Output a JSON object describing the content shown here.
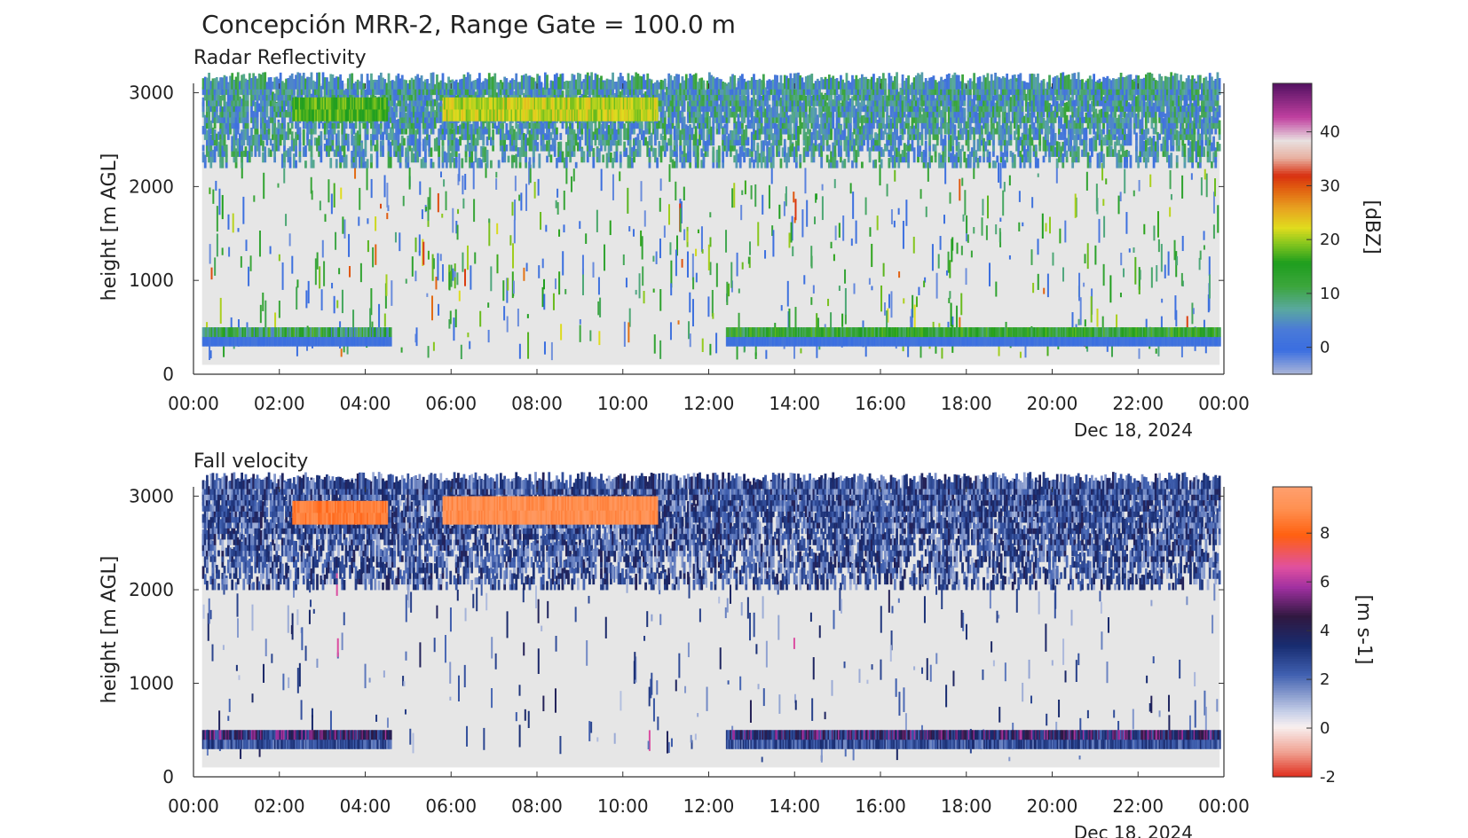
{
  "figure_title": "Concepción MRR-2, Range Gate = 100.0 m",
  "colors": {
    "background": "#e6e6e6",
    "axis": "#333333"
  },
  "panels": [
    {
      "title": "Radar Reflectivity",
      "ylabel": "height [m AGL]",
      "date_label": "Dec 18, 2024",
      "colorbar_label": "[dBZ]",
      "colorbar_ticks": [
        "0",
        "10",
        "20",
        "30",
        "40"
      ],
      "colorbar_range": [
        -5,
        49
      ]
    },
    {
      "title": "Fall velocity",
      "ylabel": "height [m AGL]",
      "date_label": "Dec 18, 2024",
      "colorbar_label": "[m s-1]",
      "colorbar_ticks": [
        "-2",
        "0",
        "2",
        "4",
        "6",
        "8"
      ],
      "colorbar_range": [
        -2,
        9.9
      ]
    }
  ],
  "x_tick_labels": [
    "00:00",
    "02:00",
    "04:00",
    "06:00",
    "08:00",
    "10:00",
    "12:00",
    "14:00",
    "16:00",
    "18:00",
    "20:00",
    "22:00",
    "00:00"
  ],
  "y_tick_labels": [
    "0",
    "1000",
    "2000",
    "3000"
  ],
  "chart_data": [
    {
      "type": "heatmap",
      "title": "Radar Reflectivity",
      "xlabel": "",
      "ylabel": "height [m AGL]",
      "x_unit": "hour of day (Dec 18, 2024)",
      "xlim": [
        0,
        24
      ],
      "ylim": [
        0,
        3100
      ],
      "value_unit": "dBZ",
      "value_range": [
        -5,
        49
      ],
      "colorbar_ticks": [
        0,
        10,
        20,
        30,
        40
      ],
      "features": [
        {
          "name": "upper layer",
          "height_range": [
            2200,
            3100
          ],
          "time_range": [
            0.2,
            23.9
          ],
          "typical_dBZ": [
            0,
            12
          ]
        },
        {
          "name": "enhanced layer",
          "height_range": [
            2700,
            2950
          ],
          "time_range": [
            2.3,
            4.5
          ],
          "typical_dBZ": [
            14,
            20
          ]
        },
        {
          "name": "enhanced layer",
          "height_range": [
            2700,
            2950
          ],
          "time_range": [
            5.8,
            10.8
          ],
          "typical_dBZ": [
            18,
            24
          ]
        },
        {
          "name": "low band",
          "height_range": [
            300,
            500
          ],
          "time_range": [
            0.2,
            4.6
          ],
          "typical_dBZ": [
            3,
            18
          ]
        },
        {
          "name": "low band",
          "height_range": [
            300,
            500
          ],
          "time_range": [
            12.4,
            23.9
          ],
          "typical_dBZ": [
            8,
            18
          ]
        }
      ]
    },
    {
      "type": "heatmap",
      "title": "Fall velocity",
      "xlabel": "",
      "ylabel": "height [m AGL]",
      "x_unit": "hour of day (Dec 18, 2024)",
      "xlim": [
        0,
        24
      ],
      "ylim": [
        0,
        3100
      ],
      "value_unit": "m s-1",
      "value_range": [
        -2,
        9.9
      ],
      "colorbar_ticks": [
        -2,
        0,
        2,
        4,
        6,
        8
      ],
      "features": [
        {
          "name": "upper layer",
          "height_range": [
            2000,
            3100
          ],
          "time_range": [
            0.2,
            23.9
          ],
          "typical_velocity": [
            1,
            4
          ]
        },
        {
          "name": "fast fall layer",
          "height_range": [
            2700,
            2950
          ],
          "time_range": [
            2.3,
            4.5
          ],
          "typical_velocity": [
            8,
            9
          ]
        },
        {
          "name": "fast fall layer",
          "height_range": [
            2700,
            3000
          ],
          "time_range": [
            5.8,
            10.8
          ],
          "typical_velocity": [
            8.5,
            9.5
          ]
        },
        {
          "name": "low band",
          "height_range": [
            300,
            500
          ],
          "time_range": [
            0.2,
            4.6
          ],
          "typical_velocity": [
            2,
            6
          ]
        },
        {
          "name": "low band",
          "height_range": [
            300,
            500
          ],
          "time_range": [
            12.4,
            23.9
          ],
          "typical_velocity": [
            2,
            6
          ]
        }
      ]
    }
  ]
}
